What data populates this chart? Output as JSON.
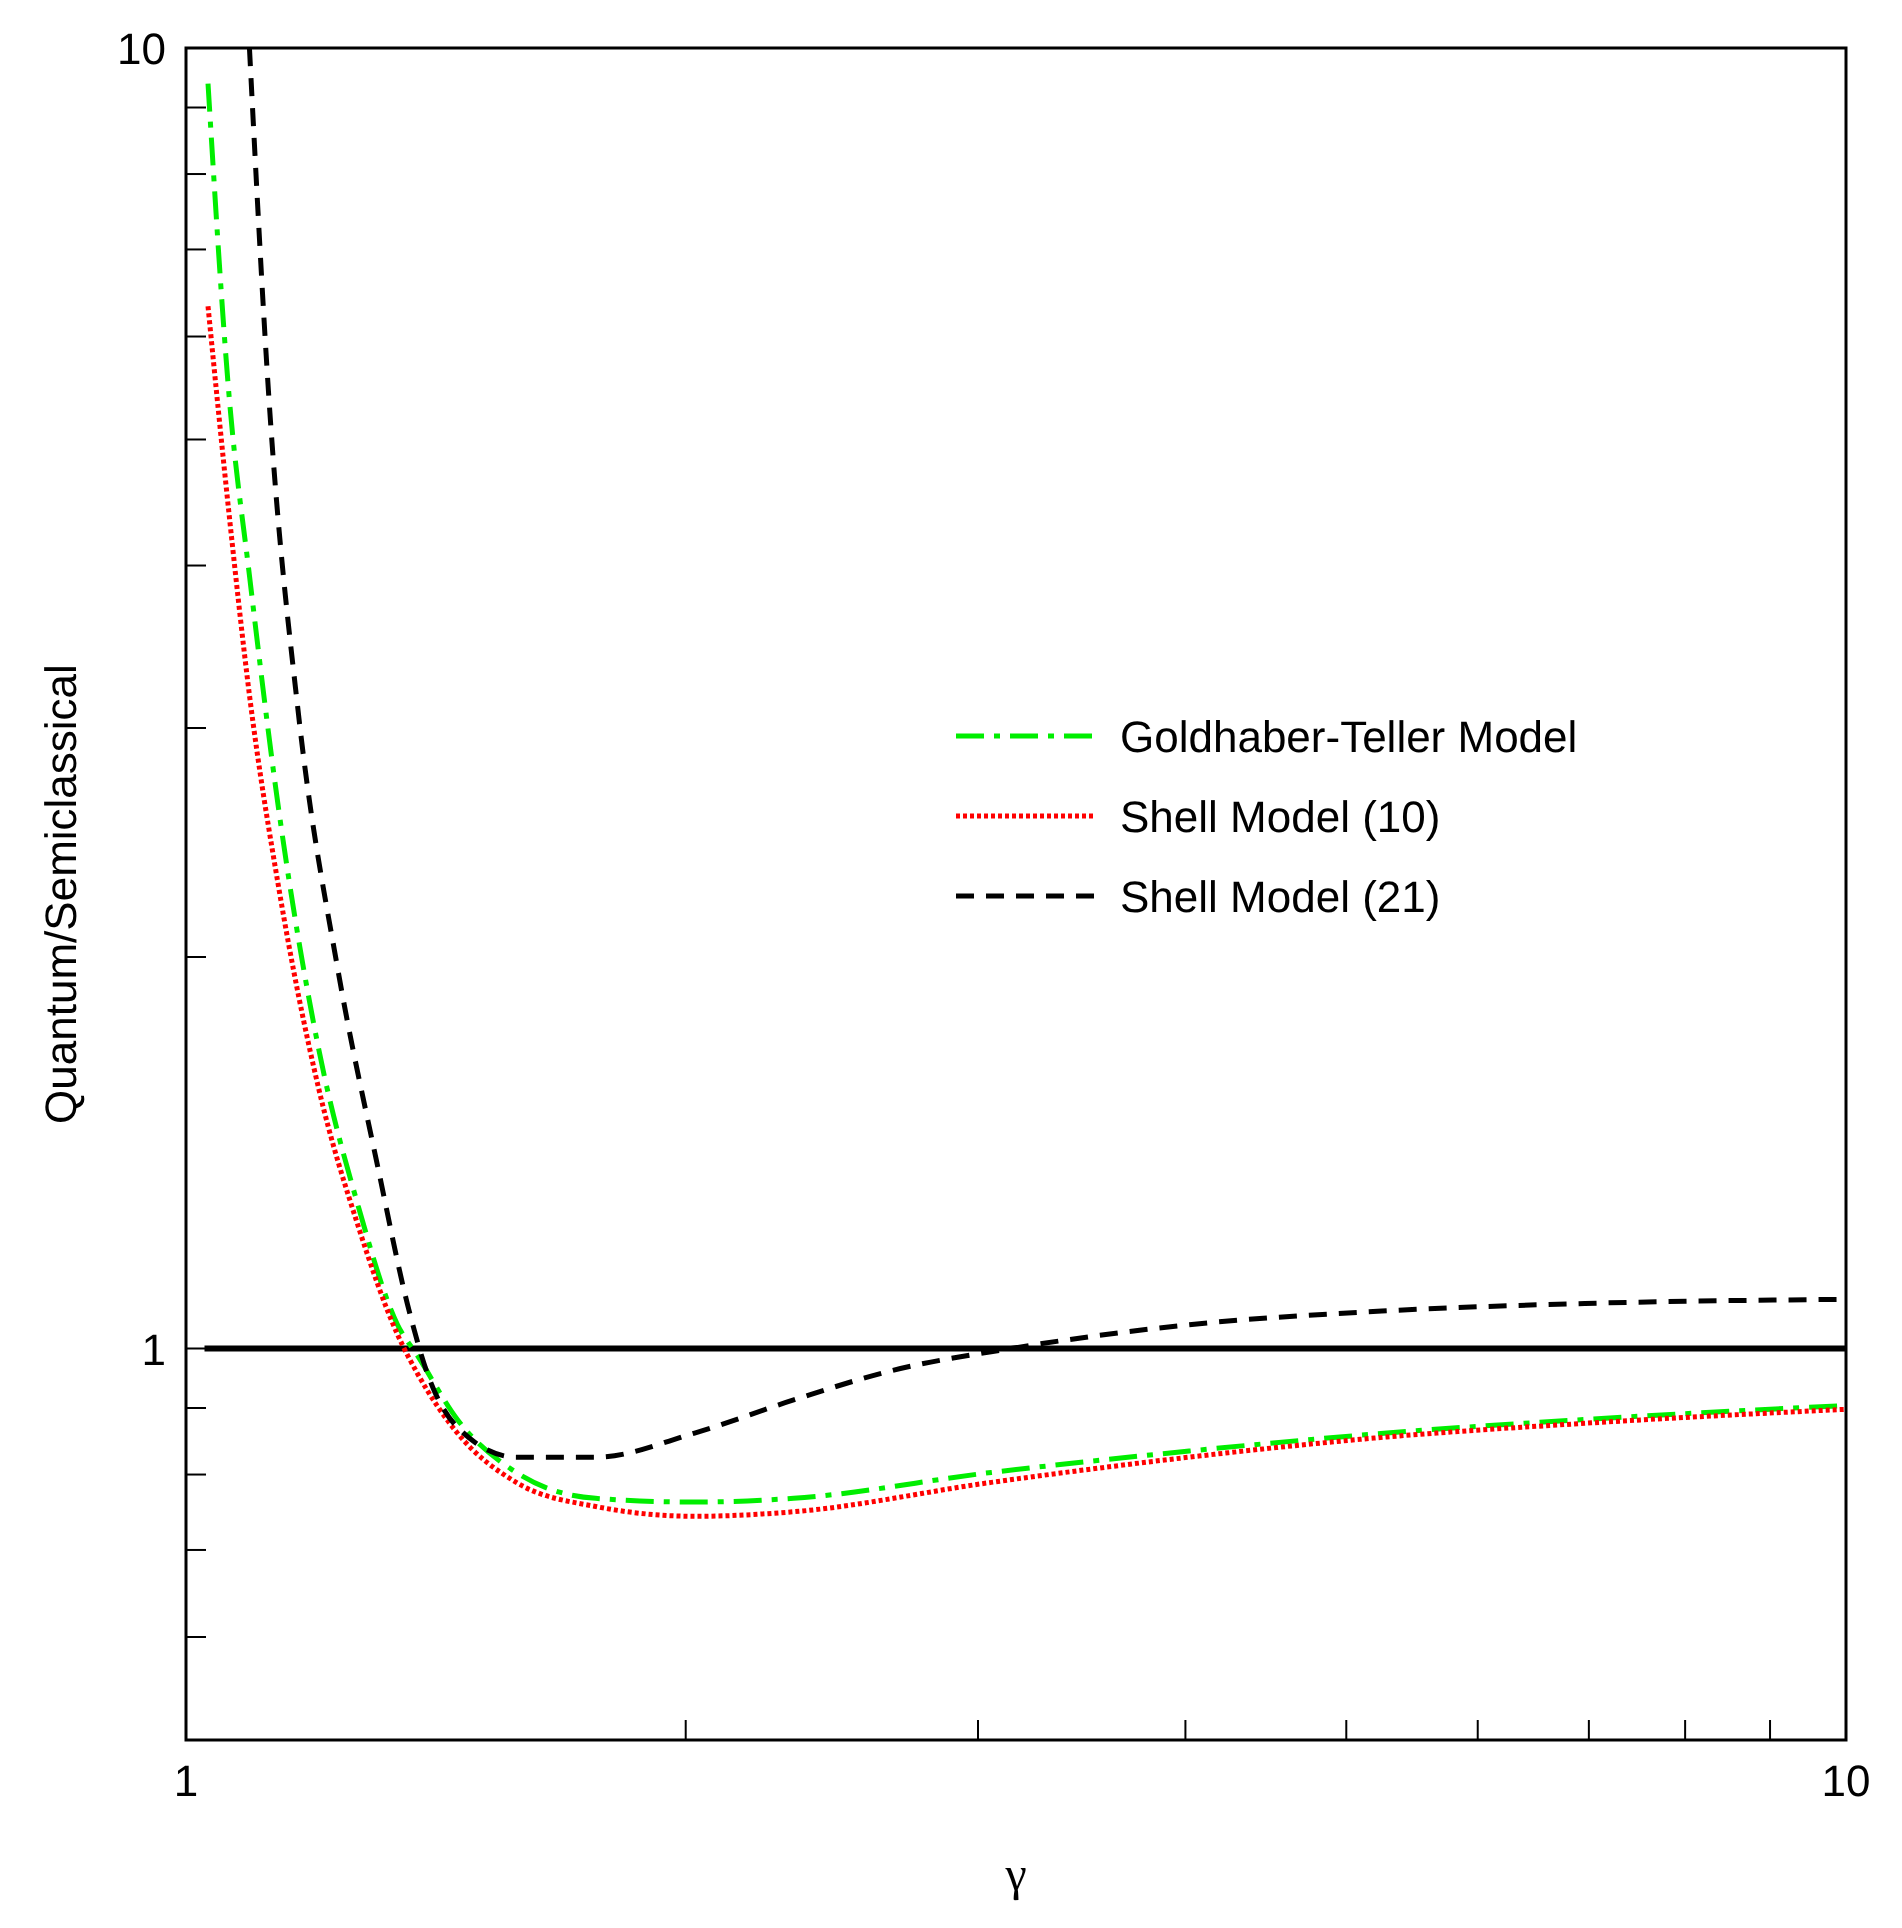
{
  "chart_data": {
    "type": "line",
    "xlabel": "γ",
    "ylabel": "Quantum/Semiclassical",
    "log": "xy",
    "xlim": [
      1,
      10
    ],
    "ylim": [
      0.5,
      10
    ],
    "xticks": [
      1,
      {
        "value": 2,
        "label": null
      },
      {
        "value": 3,
        "label": null
      },
      {
        "value": 4,
        "label": null
      },
      {
        "value": 5,
        "label": null
      },
      {
        "value": 6,
        "label": null
      },
      {
        "value": 7,
        "label": null
      },
      {
        "value": 8,
        "label": null
      },
      {
        "value": 9,
        "label": null
      },
      10
    ],
    "yticks": [
      {
        "value": 0.5,
        "label": null
      },
      {
        "value": 0.6,
        "label": null
      },
      {
        "value": 0.7,
        "label": null
      },
      {
        "value": 0.8,
        "label": null
      },
      {
        "value": 0.9,
        "label": null
      },
      1,
      {
        "value": 2,
        "label": null
      },
      {
        "value": 3,
        "label": null
      },
      {
        "value": 4,
        "label": null
      },
      {
        "value": 5,
        "label": null
      },
      {
        "value": 6,
        "label": null
      },
      {
        "value": 7,
        "label": null
      },
      {
        "value": 8,
        "label": null
      },
      {
        "value": 9,
        "label": null
      },
      10
    ],
    "grid": false,
    "legend": "right",
    "ref_lines": [
      {
        "axis": "y",
        "value": 1,
        "color": "#000000"
      }
    ],
    "series": [
      {
        "name": "Goldhaber-Teller Model",
        "color": "#00ee00",
        "line_style": "dashdot",
        "x": [
          1.031,
          1.062,
          1.092,
          1.138,
          1.202,
          1.27,
          1.341,
          1.379,
          1.457,
          1.581,
          1.765,
          2.025,
          2.323,
          3.056,
          4.021,
          5.29,
          6.961,
          10
        ],
        "values": [
          9.39,
          5.37,
          3.93,
          2.58,
          1.7,
          1.286,
          1.043,
          0.987,
          0.882,
          0.803,
          0.767,
          0.762,
          0.767,
          0.803,
          0.834,
          0.861,
          0.882,
          0.904
        ]
      },
      {
        "name": "Shell Model (10)",
        "color": "#ff0000",
        "line_style": "dotted",
        "x": [
          1.031,
          1.062,
          1.092,
          1.138,
          1.202,
          1.27,
          1.341,
          1.379,
          1.457,
          1.581,
          1.765,
          2.025,
          2.323,
          3.056,
          4.021,
          5.29,
          6.961,
          10
        ],
        "values": [
          6.33,
          4.36,
          3.18,
          2.25,
          1.585,
          1.241,
          1.025,
          0.956,
          0.861,
          0.789,
          0.756,
          0.743,
          0.749,
          0.789,
          0.825,
          0.855,
          0.876,
          0.898
        ]
      },
      {
        "name": "Shell Model (21)",
        "color": "#000000",
        "line_style": "dashed",
        "x": [
          1.092,
          1.122,
          1.169,
          1.235,
          1.305,
          1.36,
          1.398,
          1.457,
          1.581,
          1.765,
          2.025,
          2.323,
          2.665,
          3.141,
          4.021,
          5.29,
          6.961,
          10
        ],
        "values": [
          10,
          5.37,
          3.07,
          1.95,
          1.378,
          1.08,
          0.956,
          0.87,
          0.825,
          0.825,
          0.861,
          0.913,
          0.962,
          1,
          1.043,
          1.069,
          1.083,
          1.091
        ]
      }
    ]
  }
}
